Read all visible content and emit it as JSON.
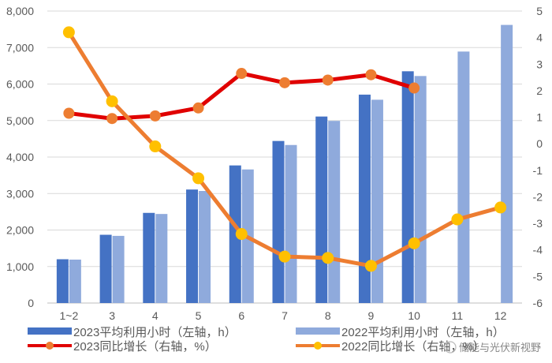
{
  "chart_data": {
    "type": "bar",
    "title": "",
    "xlabel": "",
    "ylabel": "",
    "categories": [
      "1~2",
      "3",
      "4",
      "5",
      "6",
      "7",
      "8",
      "9",
      "10",
      "11",
      "12"
    ],
    "y_left": {
      "ylim": [
        0,
        8000
      ],
      "ticks": [
        "0",
        "1,000",
        "2,000",
        "3,000",
        "4,000",
        "5,000",
        "6,000",
        "7,000",
        "8,000"
      ],
      "tick_values": [
        0,
        1000,
        2000,
        3000,
        4000,
        5000,
        6000,
        7000,
        8000
      ]
    },
    "y_right": {
      "ylim": [
        -6,
        5
      ],
      "ticks": [
        "-6",
        "-5",
        "-4",
        "-3",
        "-2",
        "-1",
        "0",
        "1",
        "2",
        "3",
        "4",
        "5"
      ],
      "tick_values": [
        -6,
        -5,
        -4,
        -3,
        -2,
        -1,
        0,
        1,
        2,
        3,
        4,
        5
      ]
    },
    "grid": true,
    "legend_position": "bottom",
    "series": [
      {
        "name": "2023平均利用小时（左轴，h）",
        "kind": "bar",
        "axis": "left",
        "color": "#4472c4",
        "values": [
          1200,
          1870,
          2470,
          3110,
          3770,
          4440,
          5110,
          5710,
          6350,
          null,
          null
        ]
      },
      {
        "name": "2022平均利用小时（左轴，h）",
        "kind": "bar",
        "axis": "left",
        "color": "#8faadc",
        "values": [
          1190,
          1840,
          2440,
          3070,
          3660,
          4330,
          4990,
          5570,
          6220,
          6890,
          7620
        ]
      },
      {
        "name": "2023同比增长（右轴，%）",
        "kind": "line",
        "axis": "right",
        "color": "#e00000",
        "marker_color": "#ed7d31",
        "values": [
          1.15,
          0.95,
          1.05,
          1.35,
          2.65,
          2.3,
          2.4,
          2.6,
          2.1,
          null,
          null
        ]
      },
      {
        "name": "2022同比增长（右轴，%）",
        "kind": "line",
        "axis": "right",
        "color": "#ed7d31",
        "marker_color": "#ffc000",
        "values": [
          4.2,
          1.6,
          -0.1,
          -1.3,
          -3.4,
          -4.25,
          -4.3,
          -4.6,
          -3.75,
          -2.85,
          -2.4
        ]
      }
    ]
  },
  "watermark": {
    "text": "储能与光伏新视野"
  }
}
